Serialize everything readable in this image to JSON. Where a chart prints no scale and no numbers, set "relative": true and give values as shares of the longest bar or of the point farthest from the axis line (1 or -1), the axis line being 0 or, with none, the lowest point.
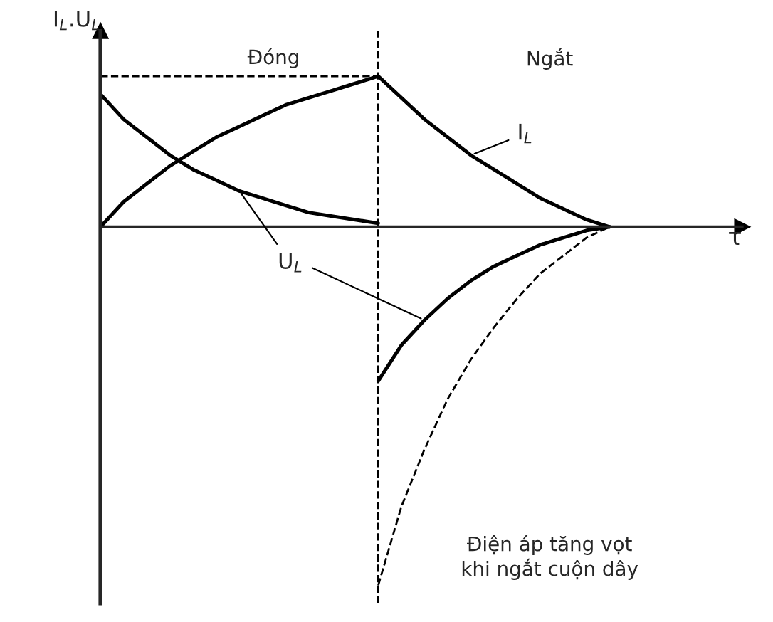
{
  "chart_data": {
    "type": "line",
    "relative": true,
    "ylabel": "I$_{L}$.U$_{L}$",
    "marker": "none",
    "categories": [
      null,
      null,
      null,
      null,
      null,
      null,
      null,
      null,
      null,
      null,
      null,
      null,
      null,
      null,
      null,
      null,
      null,
      null,
      null,
      null,
      null,
      null,
      null
    ],
    "series": [
      {
        "name": "I$_{L}$",
        "color": "#000000",
        "line_style": "solid",
        "values": [
          0,
          0.07,
          0.12,
          0.17,
          0.21,
          0.25,
          0.28,
          0.31,
          0.34,
          0.36,
          0.38,
          0.4,
          0.42,
          0.36,
          0.3,
          0.25,
          0.2,
          0.16,
          0.12,
          0.08,
          0.05,
          0.02,
          0
        ]
      },
      {
        "name": "U$_{L}$",
        "color": "#000000",
        "line_style": "solid",
        "values": [
          0.37,
          0.3,
          0.25,
          0.2,
          0.16,
          0.13,
          0.1,
          0.08,
          0.06,
          0.04,
          0.03,
          0.02,
          0.01,
          null,
          null,
          null,
          null,
          null,
          null,
          null,
          null,
          null,
          null
        ]
      },
      {
        "color": "#000000",
        "line_style": "solid",
        "values": [
          null,
          null,
          null,
          null,
          null,
          null,
          null,
          null,
          null,
          null,
          null,
          null,
          -0.43,
          -0.33,
          -0.26,
          -0.2,
          -0.15,
          -0.11,
          -0.08,
          -0.05,
          -0.03,
          -0.01,
          0
        ]
      },
      {
        "color": "#000000",
        "line_style": "dashed",
        "values": [
          null,
          null,
          null,
          null,
          null,
          null,
          null,
          null,
          null,
          null,
          null,
          null,
          -1,
          -0.78,
          -0.62,
          -0.48,
          -0.37,
          -0.28,
          -0.2,
          -0.13,
          -0.08,
          -0.03,
          0
        ]
      },
      {
        "color": "#000000",
        "line_style": "dashed",
        "values": [
          0.42,
          0.42,
          0.42,
          0.42,
          0.42,
          0.42,
          0.42,
          0.42,
          0.42,
          0.42,
          0.42,
          0.42,
          0.42,
          null,
          null,
          null,
          null,
          null,
          null,
          null,
          null,
          null,
          null
        ]
      }
    ],
    "annotations": [
      "Đóng",
      "Ngắt",
      "Điện áp tăng vọt\nkhi ngắt cuộn dây",
      "τ"
    ]
  }
}
